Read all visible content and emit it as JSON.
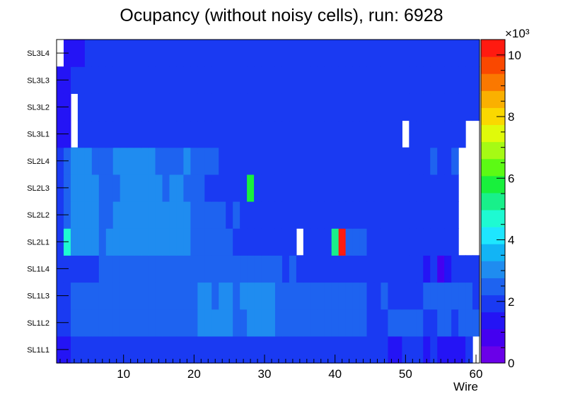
{
  "chart_data": {
    "type": "heatmap",
    "title": "Ocupancy (without noisy cells), run: 6928",
    "xlabel": "Wire",
    "ylabel": "",
    "xlim": [
      0.5,
      60.5
    ],
    "x_ticks": [
      10,
      20,
      30,
      40,
      50,
      60
    ],
    "y_categories": [
      "SL1L1",
      "SL1L2",
      "SL1L3",
      "SL1L4",
      "SL2L1",
      "SL2L2",
      "SL2L3",
      "SL2L4",
      "SL3L1",
      "SL3L2",
      "SL3L3",
      "SL3L4"
    ],
    "colorbar": {
      "min": 0,
      "max": 10500,
      "exponent_label": "×10³",
      "ticks": [
        0,
        2,
        4,
        6,
        8,
        10
      ],
      "palette": [
        "#6a00e8",
        "#4400f0",
        "#2414f5",
        "#1a3af2",
        "#1e63f0",
        "#1f8cf0",
        "#12b4f5",
        "#1ee6ff",
        "#1efad2",
        "#18f08a",
        "#18f03c",
        "#5cfa14",
        "#a6fa14",
        "#e0fa0a",
        "#fad800",
        "#fab000",
        "#fa7800",
        "#fa4800",
        "#ff1a10"
      ],
      "note": "z in hits per cell; rows below list values per 1-wire bin from wire 1 to 60, 0 = empty cell"
    },
    "rows": {
      "SL1L1": [
        1400,
        1400,
        2100,
        2100,
        2100,
        2100,
        2100,
        2100,
        2100,
        2100,
        2100,
        2100,
        2100,
        1700,
        2100,
        1700,
        1700,
        2100,
        2100,
        2100,
        2100,
        2100,
        2100,
        1700,
        1700,
        2100,
        2100,
        2100,
        1700,
        1700,
        1700,
        1700,
        1700,
        1700,
        1700,
        1700,
        1700,
        1700,
        1700,
        1700,
        1700,
        1700,
        1700,
        1700,
        1700,
        1700,
        1700,
        1300,
        1300,
        1700,
        1700,
        1700,
        1300,
        1700,
        1300,
        1300,
        1300,
        1300,
        1700,
        0
      ],
      "SL1L2": [
        2100,
        1700,
        2700,
        2700,
        2700,
        2700,
        2700,
        2700,
        2700,
        2700,
        2700,
        2700,
        2700,
        2700,
        2700,
        2700,
        2700,
        2700,
        2700,
        2700,
        3300,
        3300,
        3300,
        3300,
        3300,
        2700,
        2700,
        3300,
        3300,
        3300,
        3300,
        2700,
        2700,
        2700,
        2700,
        2700,
        2700,
        2700,
        2700,
        2700,
        2700,
        2700,
        2700,
        2700,
        2100,
        2100,
        2100,
        2700,
        2700,
        2700,
        2700,
        2700,
        1700,
        2100,
        2700,
        2700,
        2100,
        2700,
        2700,
        2700
      ],
      "SL1L3": [
        2100,
        1700,
        2700,
        2700,
        2700,
        2700,
        2700,
        2700,
        2700,
        2700,
        2700,
        2700,
        2700,
        2700,
        2700,
        2700,
        2700,
        2700,
        2700,
        2700,
        3300,
        3300,
        2700,
        3300,
        3300,
        2700,
        3300,
        3300,
        3300,
        3300,
        3300,
        2700,
        2700,
        2700,
        2700,
        2700,
        2700,
        2700,
        2700,
        2700,
        2700,
        2700,
        2700,
        2700,
        2100,
        2100,
        2700,
        2100,
        2100,
        2100,
        2100,
        2100,
        2700,
        2700,
        2700,
        2700,
        2700,
        2700,
        2700,
        2100
      ],
      "SL1L4": [
        2100,
        1700,
        2100,
        2100,
        2100,
        2100,
        2700,
        2700,
        2700,
        2700,
        2700,
        2700,
        2700,
        2700,
        2700,
        2700,
        2700,
        2700,
        2700,
        2700,
        2700,
        2700,
        2700,
        2700,
        2700,
        2700,
        2700,
        2700,
        2700,
        2700,
        2700,
        2700,
        2100,
        2700,
        2100,
        2100,
        2100,
        2100,
        2100,
        2100,
        2100,
        2100,
        2100,
        2100,
        2100,
        2100,
        2100,
        2100,
        2100,
        2100,
        1700,
        2100,
        1300,
        1700,
        600,
        1300,
        2100,
        2100,
        2100,
        1700
      ],
      "SL2L1": [
        2100,
        4500,
        3300,
        3300,
        3300,
        3300,
        2700,
        3300,
        3300,
        3300,
        3300,
        3300,
        3300,
        3300,
        3300,
        3300,
        3300,
        3300,
        3300,
        2700,
        2700,
        2700,
        2700,
        2700,
        2700,
        2100,
        2100,
        2100,
        2100,
        2100,
        2100,
        2100,
        2100,
        2100,
        0,
        2100,
        2100,
        2100,
        2100,
        5000,
        10500,
        2700,
        2700,
        2700,
        1700,
        1700,
        1700,
        1700,
        2100,
        2100,
        1700,
        2100,
        2100,
        2100,
        2100,
        2100,
        1700,
        0,
        0,
        0
      ],
      "SL2L2": [
        1700,
        2700,
        3300,
        3300,
        3300,
        3300,
        2700,
        2700,
        3300,
        3300,
        3300,
        3300,
        3300,
        3300,
        3300,
        3300,
        3300,
        3300,
        3300,
        2700,
        2700,
        2700,
        2700,
        2700,
        2100,
        2700,
        2100,
        2100,
        2100,
        2100,
        2100,
        2100,
        2100,
        2100,
        1700,
        1700,
        2100,
        2100,
        2100,
        2100,
        2100,
        2100,
        1700,
        1700,
        1700,
        1700,
        1700,
        1700,
        1700,
        1700,
        1700,
        2100,
        2100,
        2100,
        2100,
        2100,
        2100,
        0,
        0,
        0
      ],
      "SL2L3": [
        1700,
        2700,
        3300,
        3300,
        3300,
        3300,
        2700,
        2700,
        2700,
        3300,
        3300,
        3300,
        3300,
        3300,
        3300,
        2700,
        3300,
        3300,
        2700,
        2700,
        2700,
        2100,
        2100,
        2100,
        2100,
        2100,
        2100,
        5900,
        2100,
        2100,
        2100,
        2100,
        2100,
        2100,
        2100,
        1700,
        2100,
        2100,
        1700,
        1700,
        1700,
        1700,
        1700,
        1700,
        1700,
        1700,
        1700,
        1700,
        1700,
        1700,
        2100,
        2100,
        2100,
        2100,
        2100,
        2100,
        2100,
        0,
        0,
        0
      ],
      "SL2L4": [
        1700,
        2700,
        3300,
        3300,
        3300,
        2700,
        2700,
        2700,
        3300,
        3300,
        3300,
        3300,
        3300,
        3300,
        2700,
        2700,
        2700,
        2700,
        3300,
        2700,
        2700,
        2700,
        2700,
        2100,
        2100,
        2100,
        2100,
        2100,
        2100,
        2100,
        2100,
        1700,
        1700,
        2100,
        1700,
        1700,
        1700,
        2100,
        1700,
        1700,
        1700,
        1700,
        1700,
        1700,
        1700,
        1700,
        1700,
        1700,
        1700,
        1700,
        1700,
        2100,
        2100,
        2700,
        2100,
        2100,
        2700,
        0,
        0,
        0
      ],
      "SL3L1": [
        1300,
        1300,
        0,
        1700,
        1700,
        1700,
        1700,
        1700,
        1700,
        1700,
        1700,
        1700,
        1700,
        1700,
        1700,
        1700,
        1700,
        1700,
        1700,
        1700,
        1700,
        1700,
        1700,
        1700,
        1700,
        1700,
        1700,
        1700,
        1700,
        1700,
        1700,
        1700,
        1700,
        1700,
        1700,
        1700,
        1700,
        1700,
        1700,
        1700,
        1700,
        2100,
        2100,
        2100,
        2100,
        1700,
        2100,
        2100,
        2100,
        0,
        1700,
        1700,
        1700,
        1700,
        1700,
        1700,
        1700,
        1700,
        0,
        0
      ],
      "SL3L2": [
        1300,
        1300,
        0,
        1700,
        2100,
        2100,
        2100,
        2100,
        2100,
        2100,
        2100,
        2100,
        2100,
        2100,
        2100,
        2100,
        2100,
        2100,
        2100,
        2100,
        2100,
        2100,
        2100,
        2100,
        2100,
        2100,
        2100,
        2100,
        2100,
        2100,
        2100,
        2100,
        2100,
        2100,
        2100,
        2100,
        2100,
        2100,
        2100,
        2100,
        1700,
        2100,
        1700,
        2100,
        1700,
        1700,
        2100,
        2100,
        2100,
        1700,
        1700,
        2100,
        1700,
        1700,
        1700,
        1700,
        1700,
        1700,
        1700,
        1700
      ],
      "SL3L3": [
        1300,
        1300,
        1700,
        1700,
        2100,
        2100,
        2100,
        2100,
        2100,
        2100,
        2100,
        2100,
        2100,
        2100,
        2100,
        2100,
        2100,
        2100,
        2100,
        2100,
        2100,
        2100,
        2100,
        2100,
        2100,
        2100,
        2100,
        2100,
        2100,
        2100,
        2100,
        2100,
        2100,
        2100,
        2100,
        2100,
        2100,
        2100,
        2100,
        1700,
        2100,
        1700,
        1700,
        1700,
        1700,
        1700,
        1700,
        1700,
        1700,
        1700,
        1700,
        1700,
        1700,
        1700,
        1700,
        1700,
        1700,
        1700,
        1700,
        1700
      ],
      "SL3L4": [
        0,
        1300,
        1300,
        1300,
        1700,
        1700,
        2100,
        2100,
        2100,
        2100,
        2100,
        1700,
        1700,
        2100,
        2100,
        1700,
        2100,
        2100,
        2100,
        2100,
        2100,
        2100,
        2100,
        2100,
        2100,
        2100,
        2100,
        2100,
        2100,
        2100,
        2100,
        2100,
        2100,
        2100,
        1700,
        2100,
        1700,
        2100,
        1700,
        1700,
        1700,
        1700,
        1700,
        1700,
        1700,
        1700,
        1700,
        1700,
        1700,
        1700,
        1700,
        1700,
        1700,
        1700,
        1700,
        1700,
        1700,
        1700,
        1700,
        2100
      ]
    }
  }
}
